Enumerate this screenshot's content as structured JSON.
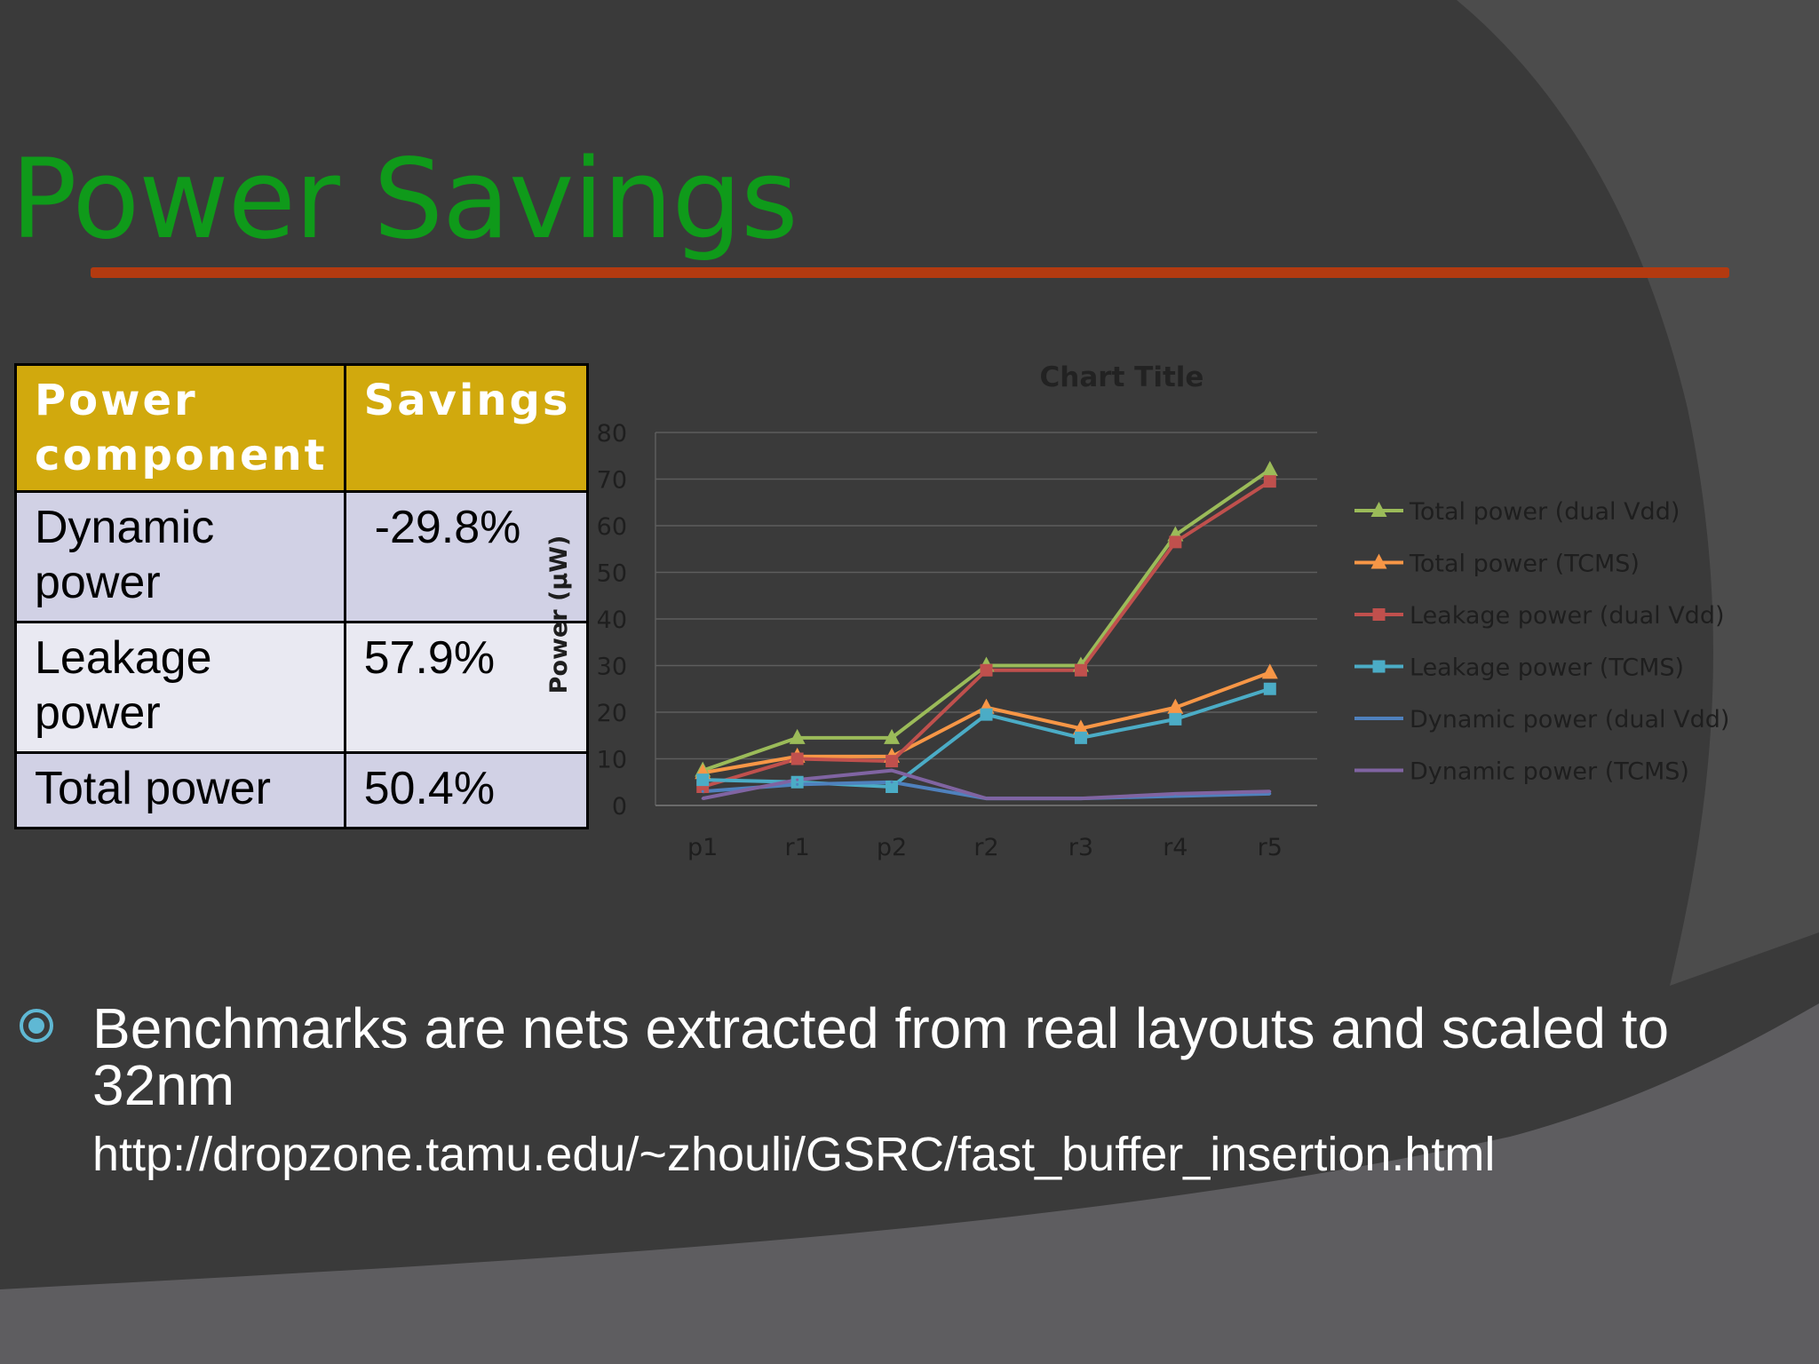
{
  "slide": {
    "title": "Power Savings",
    "theme_colors": {
      "title": "#0f9a1a",
      "rule": "#b33a10",
      "table_header": "#d1a90d"
    }
  },
  "table": {
    "headers": [
      "Power component",
      "Savings"
    ],
    "rows": [
      [
        "Dynamic power",
        "-29.8%"
      ],
      [
        "Leakage power",
        "57.9%"
      ],
      [
        "Total power",
        "50.4%"
      ]
    ]
  },
  "bullet": {
    "icon": "circle-bullet-icon",
    "text": "Benchmarks are nets extracted from real layouts and scaled to 32nm",
    "url": "http://dropzone.tamu.edu/~zhouli/GSRC/fast_buffer_insertion.html"
  },
  "chart_data": {
    "type": "line",
    "title": "Chart Title",
    "ylabel": "Power (µW)",
    "xlabel": "",
    "categories": [
      "p1",
      "r1",
      "p2",
      "r2",
      "r3",
      "r4",
      "r5"
    ],
    "ylim": [
      0,
      80
    ],
    "yticks": [
      0,
      10,
      20,
      30,
      40,
      50,
      60,
      70,
      80
    ],
    "grid": true,
    "legend_position": "right",
    "series": [
      {
        "name": "Total power (dual Vdd)",
        "color": "#9bbb59",
        "marker": "triangle",
        "values": [
          7.5,
          14.5,
          14.5,
          30,
          30,
          58,
          72
        ]
      },
      {
        "name": "Total power (TCMS)",
        "color": "#f79646",
        "marker": "triangle",
        "values": [
          7,
          10.5,
          10.5,
          21,
          16.5,
          21,
          28.5
        ]
      },
      {
        "name": "Leakage power (dual Vdd)",
        "color": "#c0504d",
        "marker": "square",
        "values": [
          4,
          10,
          9.5,
          29,
          29,
          56.5,
          69.5
        ]
      },
      {
        "name": "Leakage power (TCMS)",
        "color": "#4bacc6",
        "marker": "square",
        "values": [
          5.5,
          5,
          4,
          19.5,
          14.5,
          18.5,
          25
        ]
      },
      {
        "name": "Dynamic power (dual Vdd)",
        "color": "#4f81bd",
        "marker": "none",
        "values": [
          3,
          4.5,
          5,
          1.5,
          1.5,
          2,
          2.5
        ]
      },
      {
        "name": "Dynamic power (TCMS)",
        "color": "#8064a2",
        "marker": "none",
        "values": [
          1.5,
          5.5,
          7.5,
          1.5,
          1.5,
          2.5,
          3
        ]
      }
    ]
  }
}
